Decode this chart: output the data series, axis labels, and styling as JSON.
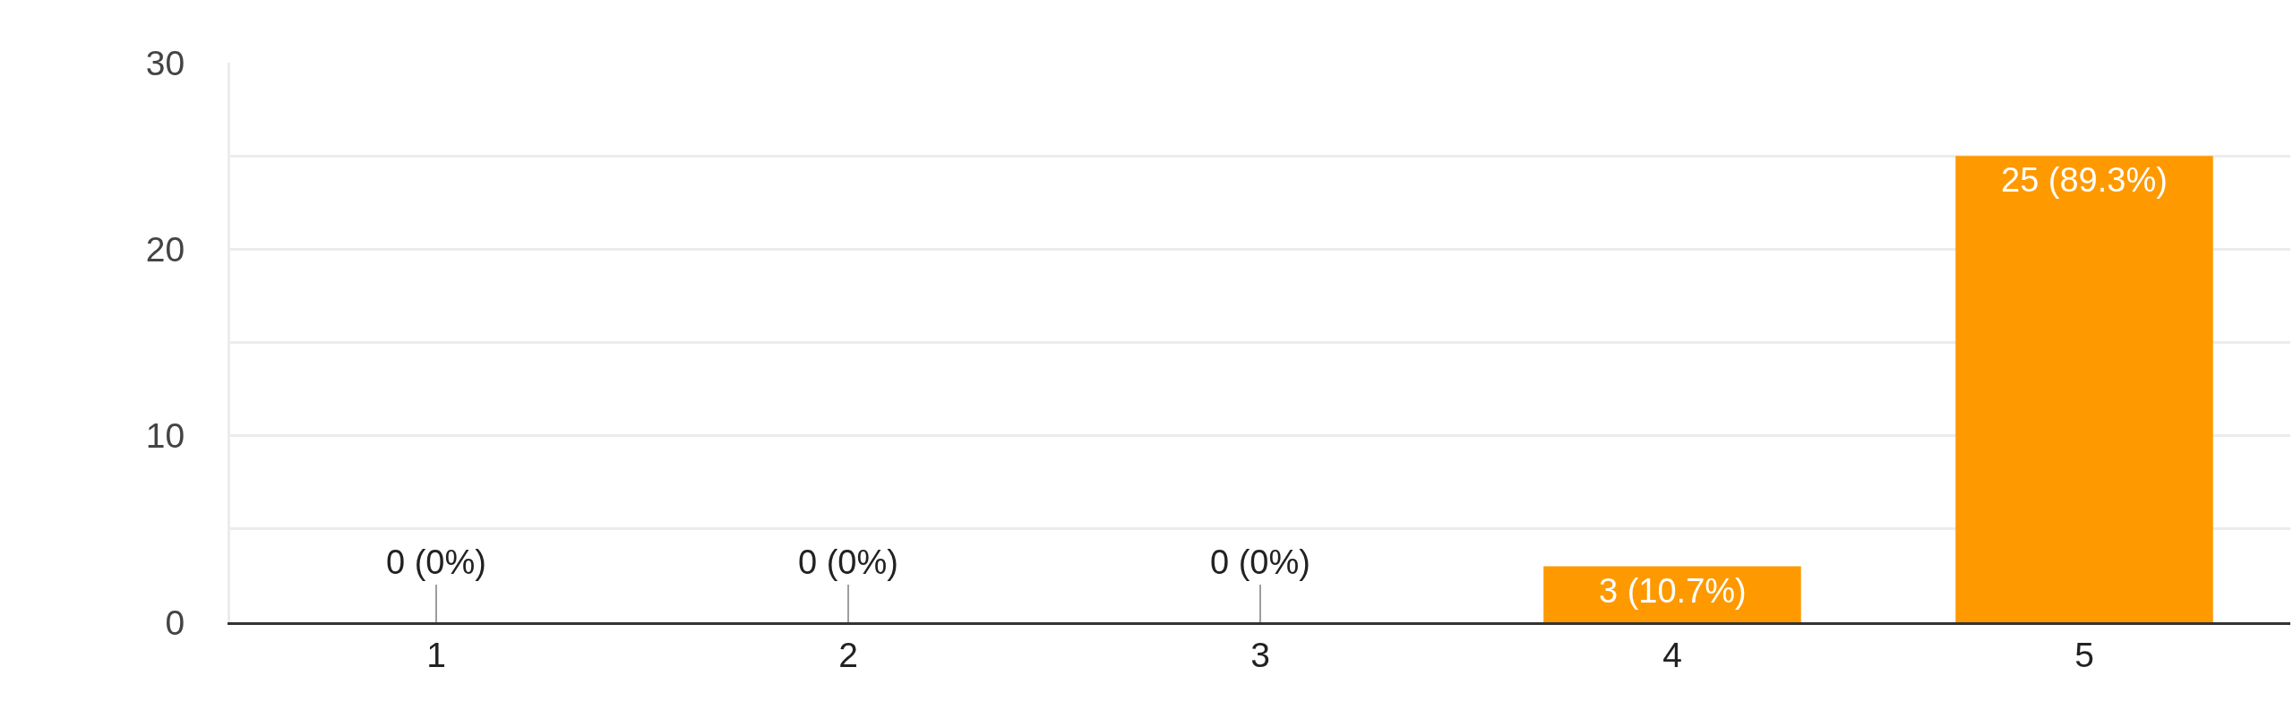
{
  "chart_data": {
    "type": "bar",
    "categories": [
      "1",
      "2",
      "3",
      "4",
      "5"
    ],
    "values": [
      0,
      0,
      0,
      3,
      25
    ],
    "color": "#ff9900",
    "value_labels": [
      "0 (0%)",
      "0 (0%)",
      "0 (0%)",
      "3 (10.7%)",
      "25 (89.3%)"
    ],
    "ylim": [
      0,
      30
    ],
    "yticks": [
      0,
      {
        "value": 5,
        "label": null
      },
      10,
      {
        "value": 15,
        "label": null
      },
      20,
      {
        "value": 25,
        "label": null
      },
      30
    ],
    "grid": "y"
  }
}
